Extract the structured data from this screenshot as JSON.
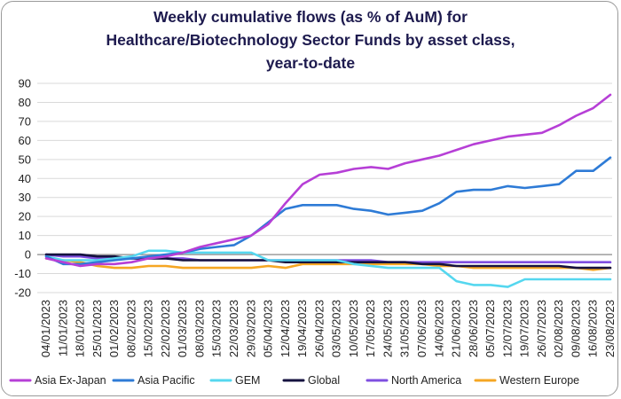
{
  "chart_data": {
    "type": "line",
    "title_lines": [
      "Weekly cumulative flows (as % of AuM) for",
      "Healthcare/Biotechnology Sector Funds by asset class,",
      "year-to-date"
    ],
    "ylim": [
      -20,
      90
    ],
    "yticks": [
      -20,
      -10,
      0,
      10,
      20,
      30,
      40,
      50,
      60,
      70,
      80,
      90
    ],
    "grid": true,
    "legend_position": "bottom",
    "x": [
      "04/01/2023",
      "11/01/2023",
      "18/01/2023",
      "25/01/2023",
      "01/02/2023",
      "08/02/2023",
      "15/02/2023",
      "22/02/2023",
      "01/03/2023",
      "08/03/2023",
      "15/03/2023",
      "22/03/2023",
      "29/03/2023",
      "05/04/2023",
      "12/04/2023",
      "19/04/2023",
      "26/04/2023",
      "03/05/2023",
      "10/05/2023",
      "17/05/2023",
      "24/05/2023",
      "31/05/2023",
      "07/06/2023",
      "14/06/2023",
      "21/06/2023",
      "28/06/2023",
      "05/07/2023",
      "12/07/2023",
      "19/07/2023",
      "26/07/2023",
      "02/08/2023",
      "09/08/2023",
      "16/08/2023",
      "23/08/2023"
    ],
    "series": [
      {
        "name": "Asia Ex-Japan",
        "color": "#b63fd6",
        "values": [
          -2,
          -4,
          -6,
          -5,
          -5,
          -4,
          -2,
          -1,
          1,
          4,
          6,
          8,
          10,
          16,
          27,
          37,
          42,
          43,
          45,
          46,
          45,
          48,
          50,
          52,
          55,
          58,
          60,
          62,
          63,
          64,
          68,
          73,
          77,
          84
        ]
      },
      {
        "name": "Asia Pacific",
        "color": "#2e7bd6",
        "values": [
          -1,
          -5,
          -5,
          -4,
          -3,
          -2,
          -1,
          0,
          1,
          3,
          4,
          5,
          10,
          17,
          24,
          26,
          26,
          26,
          24,
          23,
          21,
          22,
          23,
          27,
          33,
          34,
          34,
          36,
          35,
          36,
          37,
          44,
          44,
          51
        ]
      },
      {
        "name": "GEM",
        "color": "#55d7ef",
        "values": [
          -1,
          -3,
          -3,
          -3,
          -2,
          -1,
          2,
          2,
          1,
          1,
          1,
          1,
          1,
          -3,
          -3,
          -3,
          -3,
          -3,
          -5,
          -6,
          -7,
          -7,
          -7,
          -7,
          -14,
          -16,
          -16,
          -17,
          -13,
          -13,
          -13,
          -13,
          -13,
          -13
        ]
      },
      {
        "name": "Global",
        "color": "#15123f",
        "values": [
          0,
          0,
          0,
          -1,
          -1,
          -2,
          -2,
          -2,
          -3,
          -3,
          -3,
          -3,
          -3,
          -3,
          -4,
          -4,
          -4,
          -4,
          -4,
          -4,
          -4,
          -4,
          -5,
          -5,
          -6,
          -6,
          -6,
          -6,
          -6,
          -6,
          -6,
          -7,
          -7,
          -7
        ]
      },
      {
        "name": "North America",
        "color": "#7f4fe0",
        "values": [
          0,
          -1,
          -1,
          -2,
          -2,
          -2,
          -2,
          -2,
          -2,
          -3,
          -3,
          -3,
          -3,
          -3,
          -3,
          -3,
          -3,
          -3,
          -3,
          -3,
          -4,
          -4,
          -4,
          -4,
          -4,
          -4,
          -4,
          -4,
          -4,
          -4,
          -4,
          -4,
          -4,
          -4
        ]
      },
      {
        "name": "Western Europe",
        "color": "#f5a623",
        "values": [
          -2,
          -3,
          -4,
          -6,
          -7,
          -7,
          -6,
          -6,
          -7,
          -7,
          -7,
          -7,
          -7,
          -6,
          -7,
          -5,
          -5,
          -5,
          -5,
          -5,
          -5,
          -5,
          -5,
          -6,
          -6,
          -7,
          -7,
          -7,
          -7,
          -7,
          -7,
          -7,
          -8,
          -7
        ]
      }
    ]
  }
}
